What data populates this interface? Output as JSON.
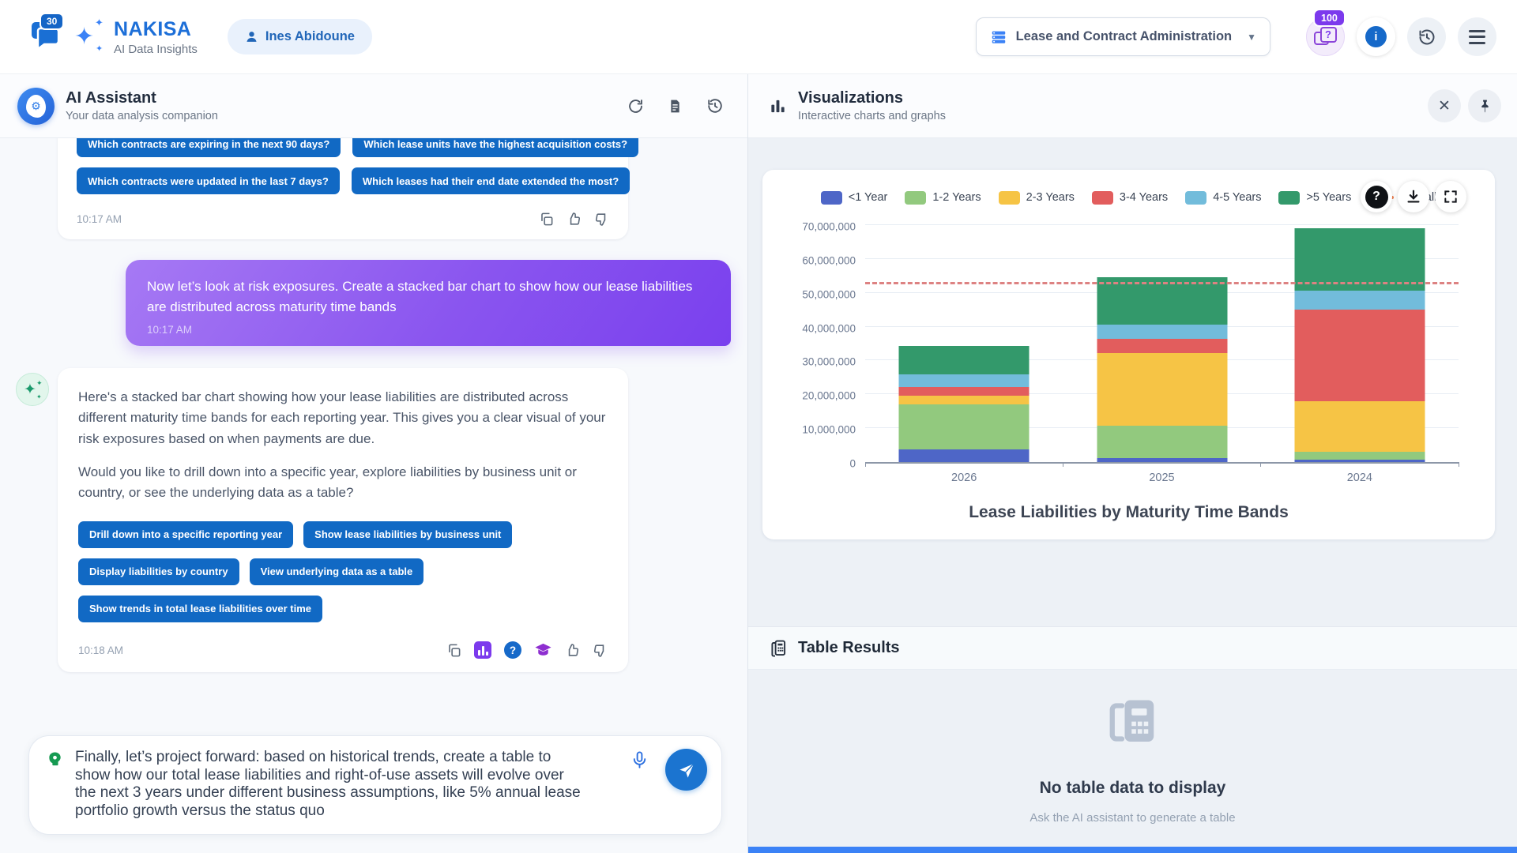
{
  "app": {
    "brand": "NAKISA",
    "brand_sub": "AI Data Insights",
    "logo_badge": "30",
    "user_name": "Ines Abidoune",
    "module_selector": "Lease and Contract Administration",
    "credits_badge": "100",
    "icons": {
      "credits_glyph": "?",
      "info_glyph": "i",
      "help_glyph": "?",
      "close_glyph": "✕"
    }
  },
  "assistant_panel": {
    "title": "AI Assistant",
    "subtitle": "Your data analysis companion",
    "first_message": {
      "suggestions": [
        "Which contracts are expiring in the next 90 days?",
        "Which lease units have the highest acquisition costs?",
        "Which contracts were updated in the last 7 days?",
        "Which leases had their end date extended the most?"
      ],
      "time": "10:17 AM"
    },
    "user_message": {
      "text": "Now let’s look at risk exposures. Create a stacked bar chart to show how our lease liabilities are distributed across maturity time bands",
      "time": "10:17 AM"
    },
    "ai_message": {
      "paragraph1": "Here's a stacked bar chart showing how your lease liabilities are distributed across different maturity time bands for each reporting year. This gives you a clear visual of your risk exposures based on when payments are due.",
      "paragraph2": "Would you like to drill down into a specific year, explore liabilities by business unit or country, or see the underlying data as a table?",
      "actions": [
        "Drill down into a specific reporting year",
        "Show lease liabilities by business unit",
        "Display liabilities by country",
        "View underlying data as a table",
        "Show trends in total lease liabilities over time"
      ],
      "time": "10:18 AM"
    },
    "composer": {
      "value": "Finally, let’s project forward: based on historical trends, create a table to show how our total lease liabilities and right-of-use assets will evolve over the next 3 years under different business assumptions, like 5% annual lease portfolio growth versus the status quo"
    }
  },
  "viz_panel": {
    "title": "Visualizations",
    "subtitle": "Interactive charts and graphs"
  },
  "table_panel": {
    "title": "Table Results",
    "empty_title": "No table data to display",
    "empty_subtitle": "Ask the AI assistant to generate a table"
  },
  "chart_data": {
    "type": "bar",
    "stacked": true,
    "title": "Lease Liabilities by Maturity Time Bands",
    "categories": [
      "2026",
      "2025",
      "2024"
    ],
    "series": [
      {
        "name": "<1 Year",
        "color": "#4e66c7",
        "values": [
          3800000,
          1200000,
          700000
        ]
      },
      {
        "name": "1-2 Years",
        "color": "#92c97e",
        "values": [
          13200000,
          9600000,
          2400000
        ]
      },
      {
        "name": "2-3 Years",
        "color": "#f6c445",
        "values": [
          2600000,
          21500000,
          14800000
        ]
      },
      {
        "name": "3-4 Years",
        "color": "#e25d5d",
        "values": [
          2600000,
          4100000,
          27100000
        ]
      },
      {
        "name": "4-5 Years",
        "color": "#72bcdb",
        "values": [
          3600000,
          4300000,
          5700000
        ]
      },
      {
        "name": ">5 Years",
        "color": "#33996b",
        "values": [
          8600000,
          13800000,
          18400000
        ]
      }
    ],
    "overall_line": {
      "name": "Overall",
      "value": 52500000,
      "marker_color": "#f08050",
      "line_color": "#dd8282",
      "style": "dashed"
    },
    "xlabel": "",
    "ylabel": "",
    "ylim": [
      0,
      70000000
    ],
    "y_tick_step": 10000000,
    "grid": true,
    "legend_position": "top"
  }
}
